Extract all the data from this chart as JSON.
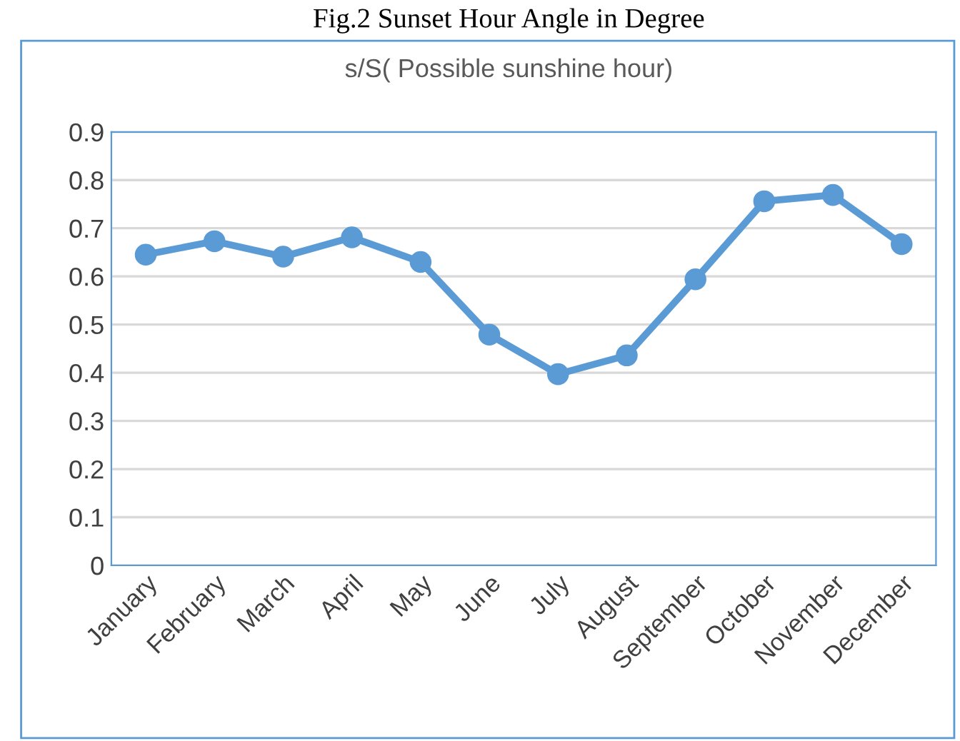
{
  "chart_data": {
    "type": "line",
    "title": "s/S( Possible sunshine hour)",
    "annotations": [
      "Fig.2 Sunset Hour Angle in Degree"
    ],
    "categories": [
      "January",
      "February",
      "March",
      "April",
      "May",
      "June",
      "July",
      "August",
      "September",
      "October",
      "November",
      "December"
    ],
    "series": [
      {
        "color": "#5b9bd5",
        "values": [
          0.645,
          0.673,
          0.641,
          0.681,
          0.63,
          0.479,
          0.397,
          0.436,
          0.594,
          0.756,
          0.769,
          0.667
        ]
      }
    ],
    "ylim": [
      0,
      0.9
    ],
    "yticks": [
      0,
      0.1,
      0.2,
      0.3,
      0.4,
      0.5,
      0.6,
      0.7,
      0.8,
      0.9
    ],
    "grid": "y",
    "marker": "circle",
    "line_style": "solid",
    "legend": false
  }
}
